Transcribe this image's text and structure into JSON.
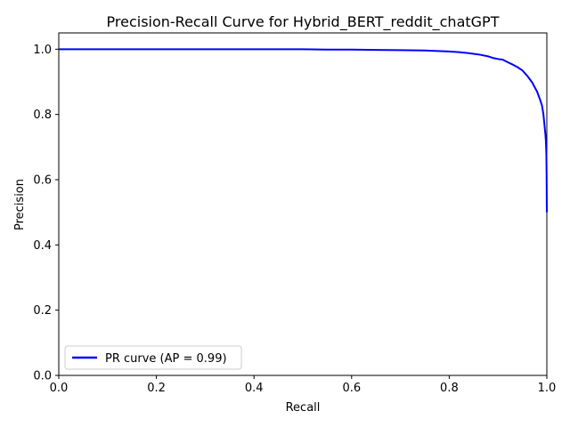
{
  "chart_data": {
    "type": "line",
    "title": "Precision-Recall Curve for Hybrid_BERT_reddit_chatGPT",
    "xlabel": "Recall",
    "ylabel": "Precision",
    "xlim": [
      0.0,
      1.0
    ],
    "ylim": [
      0.0,
      1.05
    ],
    "x_ticks": [
      "0.0",
      "0.2",
      "0.4",
      "0.6",
      "0.8",
      "1.0"
    ],
    "y_ticks": [
      "0.0",
      "0.2",
      "0.4",
      "0.6",
      "0.8",
      "1.0"
    ],
    "grid": false,
    "legend_position": "lower-left",
    "series": [
      {
        "name": "PR curve (AP = 0.99)",
        "color": "#0000ff",
        "points": [
          [
            0.0,
            1.0
          ],
          [
            0.1,
            1.0
          ],
          [
            0.2,
            1.0
          ],
          [
            0.3,
            1.0
          ],
          [
            0.4,
            1.0
          ],
          [
            0.5,
            1.0
          ],
          [
            0.55,
            0.999
          ],
          [
            0.6,
            0.999
          ],
          [
            0.65,
            0.998
          ],
          [
            0.7,
            0.997
          ],
          [
            0.75,
            0.996
          ],
          [
            0.8,
            0.993
          ],
          [
            0.82,
            0.991
          ],
          [
            0.84,
            0.988
          ],
          [
            0.86,
            0.984
          ],
          [
            0.88,
            0.978
          ],
          [
            0.89,
            0.973
          ],
          [
            0.9,
            0.97
          ],
          [
            0.91,
            0.968
          ],
          [
            0.92,
            0.96
          ],
          [
            0.93,
            0.953
          ],
          [
            0.94,
            0.945
          ],
          [
            0.95,
            0.935
          ],
          [
            0.96,
            0.918
          ],
          [
            0.97,
            0.898
          ],
          [
            0.98,
            0.87
          ],
          [
            0.985,
            0.85
          ],
          [
            0.99,
            0.828
          ],
          [
            0.993,
            0.8
          ],
          [
            0.995,
            0.77
          ],
          [
            0.997,
            0.74
          ],
          [
            0.998,
            0.72
          ],
          [
            0.999,
            0.68
          ],
          [
            0.9995,
            0.62
          ],
          [
            1.0,
            0.5
          ]
        ]
      }
    ]
  }
}
